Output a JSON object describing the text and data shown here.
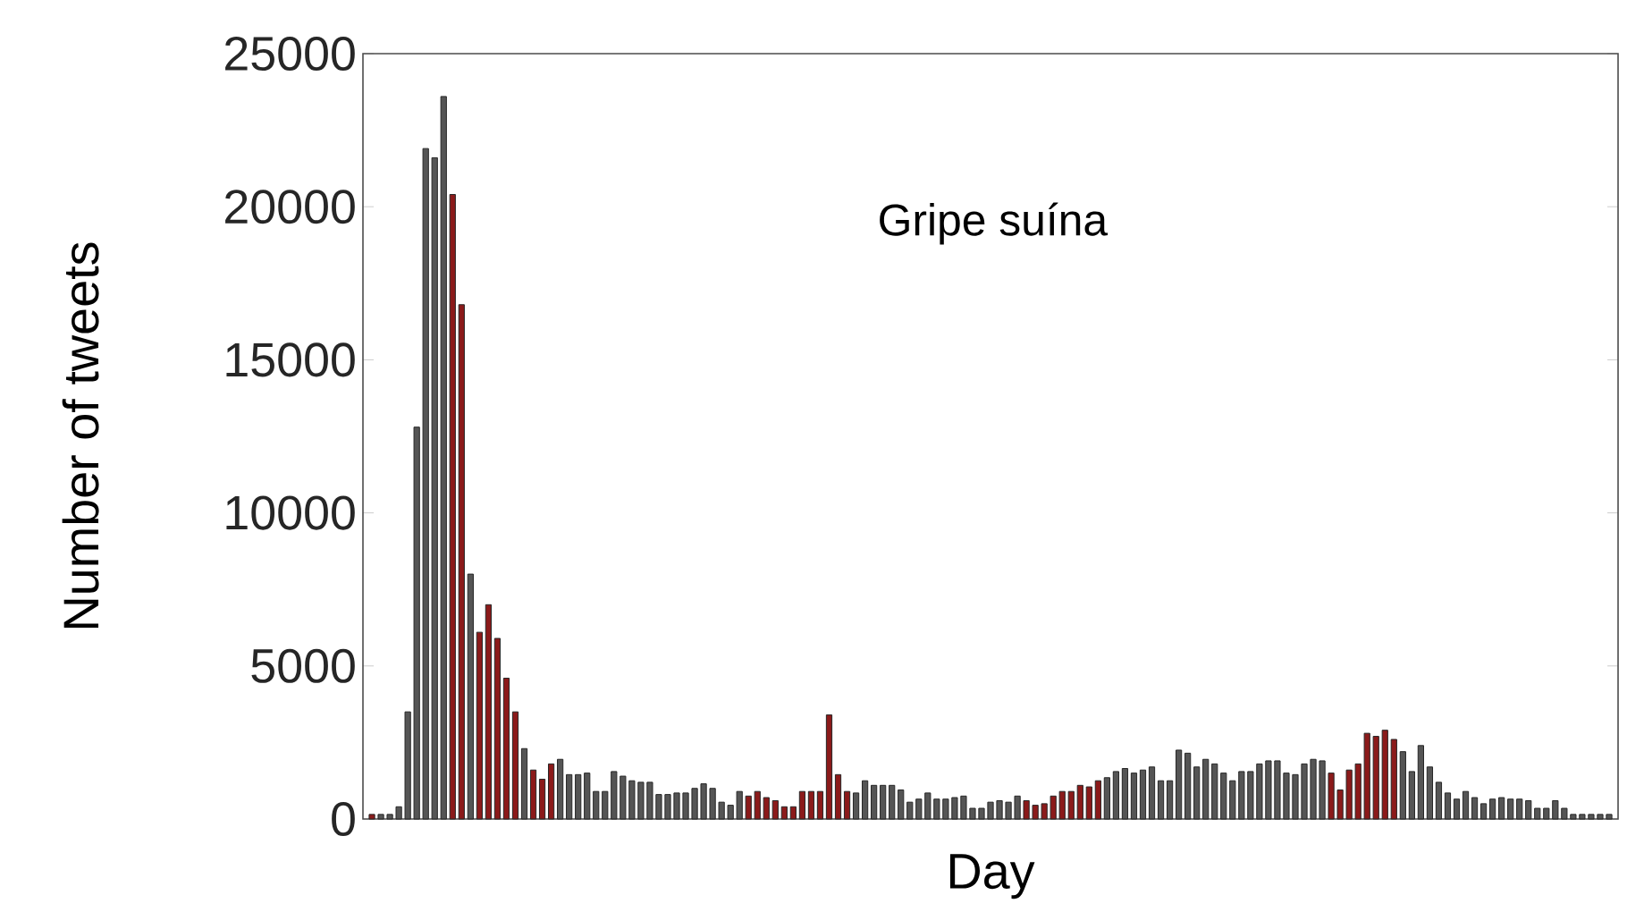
{
  "chart_data": {
    "type": "bar",
    "xlabel": "Day",
    "ylabel": "Number of tweets",
    "annotations": [
      "Gripe suína"
    ],
    "ylim": [
      0,
      25000
    ],
    "yticks": [
      0,
      5000,
      10000,
      15000,
      20000,
      25000
    ],
    "categories": [
      null,
      null,
      null,
      null,
      null,
      null,
      null,
      null,
      null,
      null,
      null,
      null,
      null,
      null,
      null,
      null,
      null,
      null,
      null,
      null,
      null,
      null,
      null,
      null,
      null,
      null,
      null,
      null,
      null,
      null,
      null,
      null,
      null,
      null,
      null,
      null,
      null,
      null,
      null,
      null,
      null,
      null,
      null,
      null,
      null,
      null,
      null,
      null,
      null,
      null,
      null,
      null,
      null,
      null,
      null,
      null,
      null,
      null,
      null,
      null,
      null,
      null,
      null,
      null,
      null,
      null,
      null,
      null,
      null,
      null,
      null,
      null,
      null,
      null,
      null,
      null,
      null,
      null,
      null,
      null,
      null,
      null,
      null,
      null,
      null,
      null,
      null,
      null,
      null,
      null,
      null,
      null,
      null,
      null,
      null,
      null,
      null,
      null,
      null,
      null,
      null,
      null,
      null,
      null,
      null,
      null,
      null,
      null,
      null,
      null,
      null,
      null,
      null,
      null,
      null,
      null,
      null,
      null,
      null,
      null,
      null,
      null,
      null,
      null,
      null,
      null,
      null,
      null,
      null,
      null,
      null,
      null,
      null,
      null,
      null,
      null,
      null,
      null,
      null
    ],
    "values": [
      150,
      150,
      150,
      400,
      3500,
      12800,
      21900,
      21600,
      23600,
      20400,
      16800,
      8000,
      6100,
      7000,
      5900,
      4600,
      3500,
      2300,
      1600,
      1300,
      1800,
      1950,
      1450,
      1450,
      1500,
      900,
      900,
      1550,
      1400,
      1250,
      1200,
      1200,
      800,
      800,
      850,
      850,
      1000,
      1150,
      1000,
      550,
      450,
      900,
      750,
      900,
      700,
      600,
      400,
      400,
      900,
      900,
      900,
      3400,
      1450,
      900,
      850,
      1250,
      1100,
      1100,
      1100,
      950,
      550,
      650,
      850,
      650,
      650,
      700,
      750,
      350,
      350,
      550,
      600,
      550,
      750,
      600,
      450,
      500,
      750,
      900,
      900,
      1100,
      1050,
      1250,
      1350,
      1550,
      1650,
      1500,
      1600,
      1700,
      1250,
      1250,
      2250,
      2150,
      1700,
      1950,
      1800,
      1500,
      1250,
      1550,
      1550,
      1800,
      1900,
      1900,
      1500,
      1450,
      1800,
      1950,
      1900,
      1500,
      950,
      1600,
      1800,
      2800,
      2700,
      2900,
      2600,
      2200,
      1550,
      2400,
      1700,
      1200,
      850,
      650,
      900,
      700,
      500,
      650,
      700,
      650,
      650,
      600,
      350,
      350,
      600,
      350,
      150,
      150,
      150,
      150,
      150
    ],
    "colors": [
      "#8b1a1a",
      "#555555",
      "#555555",
      "#555555",
      "#555555",
      "#555555",
      "#555555",
      "#555555",
      "#555555",
      "#8b1a1a",
      "#8b1a1a",
      "#555555",
      "#8b1a1a",
      "#8b1a1a",
      "#8b1a1a",
      "#8b1a1a",
      "#8b1a1a",
      "#555555",
      "#8b1a1a",
      "#8b1a1a",
      "#8b1a1a",
      "#555555",
      "#555555",
      "#555555",
      "#555555",
      "#555555",
      "#555555",
      "#555555",
      "#555555",
      "#555555",
      "#555555",
      "#555555",
      "#555555",
      "#555555",
      "#555555",
      "#555555",
      "#555555",
      "#555555",
      "#555555",
      "#555555",
      "#555555",
      "#555555",
      "#8b1a1a",
      "#8b1a1a",
      "#8b1a1a",
      "#8b1a1a",
      "#8b1a1a",
      "#8b1a1a",
      "#8b1a1a",
      "#8b1a1a",
      "#8b1a1a",
      "#8b1a1a",
      "#8b1a1a",
      "#8b1a1a",
      "#555555",
      "#555555",
      "#555555",
      "#555555",
      "#555555",
      "#555555",
      "#555555",
      "#555555",
      "#555555",
      "#555555",
      "#555555",
      "#555555",
      "#555555",
      "#555555",
      "#555555",
      "#555555",
      "#555555",
      "#555555",
      "#555555",
      "#8b1a1a",
      "#8b1a1a",
      "#8b1a1a",
      "#8b1a1a",
      "#8b1a1a",
      "#8b1a1a",
      "#8b1a1a",
      "#8b1a1a",
      "#8b1a1a",
      "#555555",
      "#555555",
      "#555555",
      "#555555",
      "#555555",
      "#555555",
      "#555555",
      "#555555",
      "#555555",
      "#555555",
      "#555555",
      "#555555",
      "#555555",
      "#555555",
      "#555555",
      "#555555",
      "#555555",
      "#555555",
      "#555555",
      "#555555",
      "#555555",
      "#555555",
      "#555555",
      "#555555",
      "#555555",
      "#8b1a1a",
      "#8b1a1a",
      "#8b1a1a",
      "#8b1a1a",
      "#8b1a1a",
      "#8b1a1a",
      "#8b1a1a",
      "#8b1a1a",
      "#555555",
      "#555555",
      "#555555",
      "#555555",
      "#555555",
      "#555555",
      "#555555",
      "#555555",
      "#555555",
      "#555555",
      "#555555",
      "#555555",
      "#555555",
      "#555555",
      "#555555",
      "#555555",
      "#555555",
      "#555555",
      "#555555",
      "#555555",
      "#555555",
      "#555555",
      "#555555",
      "#555555"
    ]
  }
}
